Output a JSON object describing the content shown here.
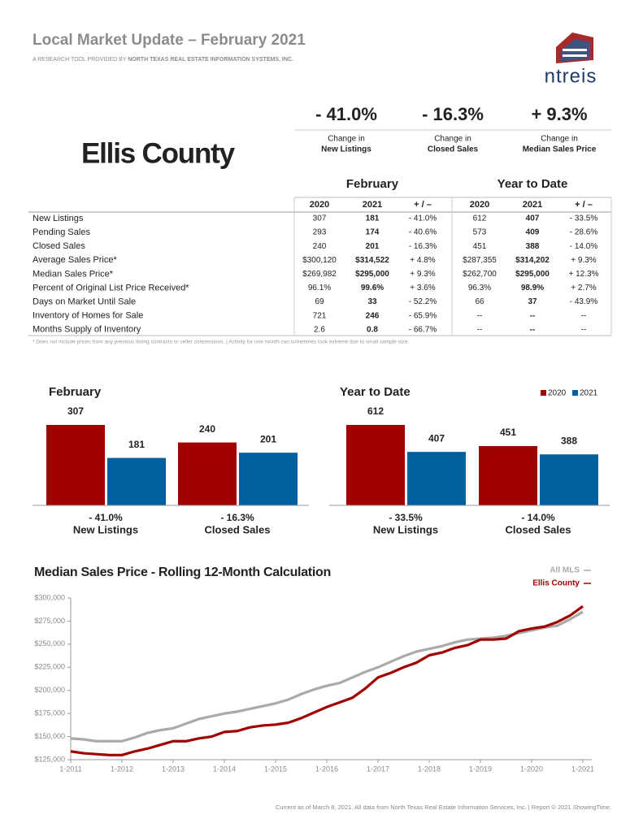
{
  "header": {
    "title": "Local Market Update – February 2021",
    "subtitle_prefix": "A RESEARCH TOOL PROVIDED BY",
    "subtitle_org": "NORTH TEXAS REAL ESTATE INFORMATION SYSTEMS, INC.",
    "logo_text": "ntreis"
  },
  "county": "Ellis County",
  "highlights": [
    {
      "value": "- 41.0%",
      "label_top": "Change in",
      "label_bottom": "New Listings"
    },
    {
      "value": "- 16.3%",
      "label_top": "Change in",
      "label_bottom": "Closed Sales"
    },
    {
      "value": "+ 9.3%",
      "label_top": "Change in",
      "label_bottom": "Median Sales Price"
    }
  ],
  "table": {
    "groups": [
      "February",
      "Year to Date"
    ],
    "columns": [
      "2020",
      "2021",
      "+ / –",
      "2020",
      "2021",
      "+ / –"
    ],
    "rows": [
      [
        "New Listings",
        "307",
        "181",
        "- 41.0%",
        "612",
        "407",
        "- 33.5%"
      ],
      [
        "Pending Sales",
        "293",
        "174",
        "- 40.6%",
        "573",
        "409",
        "- 28.6%"
      ],
      [
        "Closed Sales",
        "240",
        "201",
        "- 16.3%",
        "451",
        "388",
        "- 14.0%"
      ],
      [
        "Average Sales Price*",
        "$300,120",
        "$314,522",
        "+ 4.8%",
        "$287,355",
        "$314,202",
        "+ 9.3%"
      ],
      [
        "Median Sales Price*",
        "$269,982",
        "$295,000",
        "+ 9.3%",
        "$262,700",
        "$295,000",
        "+ 12.3%"
      ],
      [
        "Percent of Original List Price Received*",
        "96.1%",
        "99.6%",
        "+ 3.6%",
        "96.3%",
        "98.9%",
        "+ 2.7%"
      ],
      [
        "Days on Market Until Sale",
        "69",
        "33",
        "- 52.2%",
        "66",
        "37",
        "- 43.9%"
      ],
      [
        "Inventory of Homes for Sale",
        "721",
        "246",
        "- 65.9%",
        "--",
        "--",
        "--"
      ],
      [
        "Months Supply of Inventory",
        "2.6",
        "0.8",
        "- 66.7%",
        "--",
        "--",
        "--"
      ]
    ],
    "footnote": "* Does not include prices from any previous listing contracts or seller concessions. | Activity for one month can sometimes look extreme due to small sample size."
  },
  "bar_charts": {
    "series": [
      {
        "name": "2020",
        "color": "#a00000"
      },
      {
        "name": "2021",
        "color": "#005f9e"
      }
    ],
    "charts": [
      {
        "type": "bar",
        "title": "February",
        "categories": [
          "New Listings",
          "Closed Sales"
        ],
        "changes": [
          "- 41.0%",
          "- 16.3%"
        ],
        "values": [
          [
            307,
            240
          ],
          [
            181,
            201
          ]
        ]
      },
      {
        "type": "bar",
        "title": "Year to Date",
        "categories": [
          "New Listings",
          "Closed Sales"
        ],
        "changes": [
          "- 33.5%",
          "- 14.0%"
        ],
        "values": [
          [
            612,
            451
          ],
          [
            407,
            388
          ]
        ]
      }
    ]
  },
  "line_chart": {
    "type": "line",
    "title": "Median Sales Price - Rolling 12-Month Calculation",
    "x": [
      "1-2011",
      "4-2011",
      "7-2011",
      "10-2011",
      "1-2012",
      "4-2012",
      "7-2012",
      "10-2012",
      "1-2013",
      "4-2013",
      "7-2013",
      "10-2013",
      "1-2014",
      "4-2014",
      "7-2014",
      "10-2014",
      "1-2015",
      "4-2015",
      "7-2015",
      "10-2015",
      "1-2016",
      "4-2016",
      "7-2016",
      "10-2016",
      "1-2017",
      "4-2017",
      "7-2017",
      "10-2017",
      "1-2018",
      "4-2018",
      "7-2018",
      "10-2018",
      "1-2019",
      "4-2019",
      "7-2019",
      "10-2019",
      "1-2020",
      "4-2020",
      "7-2020",
      "10-2020",
      "1-2021"
    ],
    "xticks": [
      "1-2011",
      "1-2012",
      "1-2013",
      "1-2014",
      "1-2015",
      "1-2016",
      "1-2017",
      "1-2018",
      "1-2019",
      "1-2020",
      "1-2021"
    ],
    "ylim": [
      125000,
      300000
    ],
    "yticks": [
      {
        "value": 125000,
        "label": "$125,000"
      },
      {
        "value": 150000,
        "label": "$150,000"
      },
      {
        "value": 175000,
        "label": "$175,000"
      },
      {
        "value": 200000,
        "label": "$200,000"
      },
      {
        "value": 225000,
        "label": "$225,000"
      },
      {
        "value": 250000,
        "label": "$250,000"
      },
      {
        "value": 275000,
        "label": "$275,000"
      },
      {
        "value": 300000,
        "label": "$300,000"
      }
    ],
    "series": [
      {
        "name": "All MLS",
        "color": "#aaaaaa",
        "values": [
          148000,
          147000,
          145000,
          145000,
          145000,
          149000,
          154000,
          157000,
          159000,
          164000,
          169000,
          172000,
          175000,
          177000,
          180000,
          183000,
          186000,
          190000,
          196000,
          201000,
          205000,
          208000,
          214000,
          220000,
          225000,
          231000,
          237000,
          242000,
          245000,
          248000,
          252000,
          255000,
          256000,
          257000,
          259000,
          262000,
          265000,
          268000,
          270000,
          277000,
          285000
        ]
      },
      {
        "name": "Ellis County",
        "color": "#a00000",
        "values": [
          134000,
          132000,
          131000,
          130000,
          130000,
          134000,
          137000,
          141000,
          145000,
          145000,
          148000,
          150000,
          155000,
          156000,
          160000,
          162000,
          163000,
          165000,
          170000,
          176000,
          182000,
          187000,
          192000,
          202000,
          214000,
          219000,
          225000,
          230000,
          238000,
          241000,
          246000,
          249000,
          255000,
          255000,
          256000,
          264000,
          267000,
          269000,
          274000,
          281000,
          291000
        ]
      }
    ]
  },
  "footer": "Current as of March 8, 2021. All data from North Texas Real Estate Information Services, Inc. | Report © 2021 ShowingTime."
}
